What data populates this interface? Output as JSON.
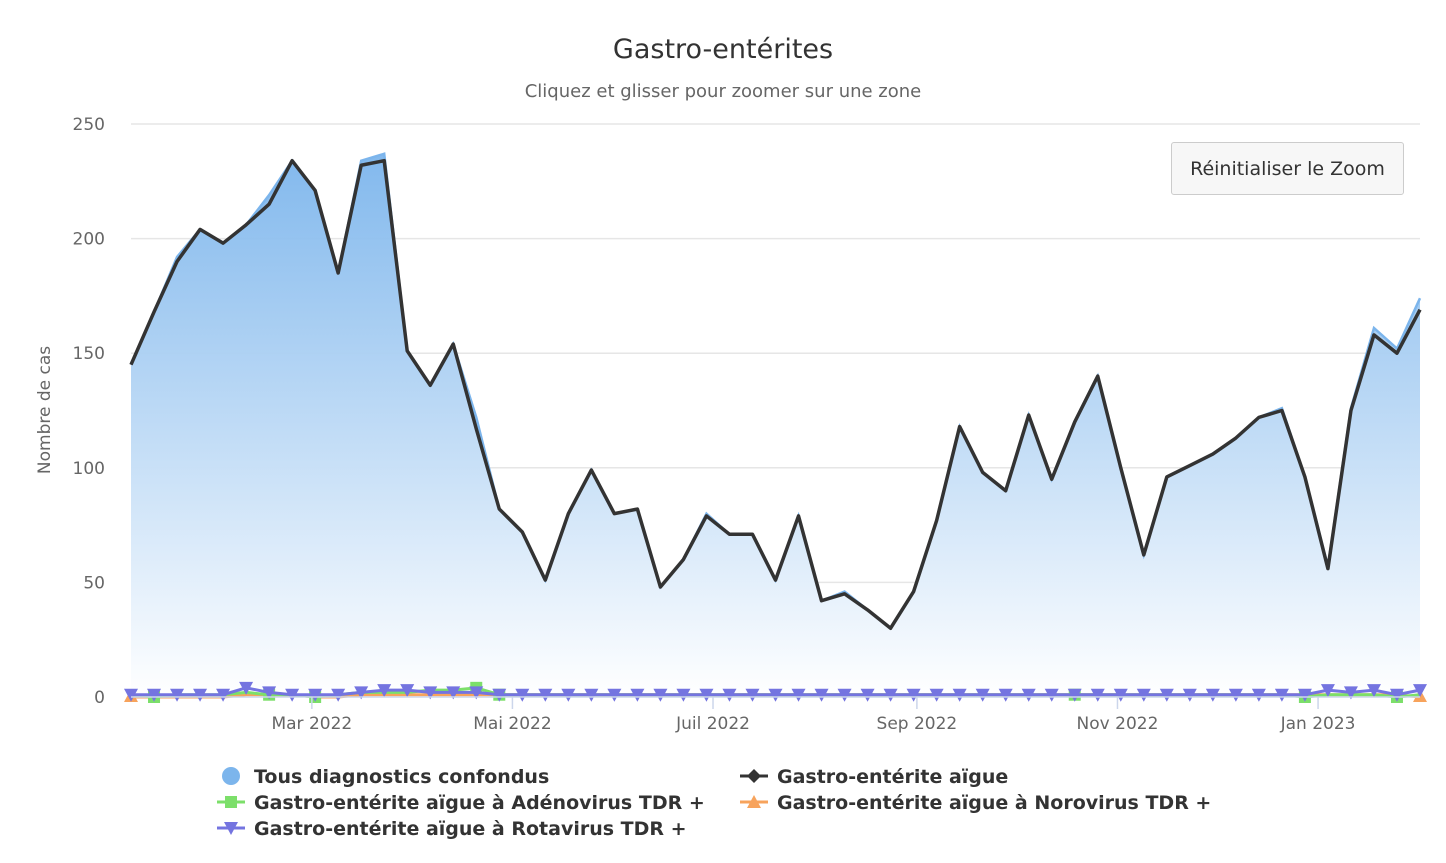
{
  "chart_data": {
    "type": "area",
    "title": "Gastro-entérites",
    "subtitle": "Cliquez et glisser pour zoomer sur une zone",
    "ylabel": "Nombre de cas",
    "xlabel": "",
    "ylim": [
      0,
      250
    ],
    "yticks": [
      0,
      50,
      100,
      150,
      200,
      250
    ],
    "xticks": [
      {
        "date": "2022-03-01",
        "label": "Mar 2022"
      },
      {
        "date": "2022-05-01",
        "label": "Mai 2022"
      },
      {
        "date": "2022-07-01",
        "label": "Juil 2022"
      },
      {
        "date": "2022-09-01",
        "label": "Sep 2022"
      },
      {
        "date": "2022-11-01",
        "label": "Nov 2022"
      },
      {
        "date": "2023-01-01",
        "label": "Jan 2023"
      }
    ],
    "grid": true,
    "legend_position": "bottom",
    "x": [
      "2022-01-05",
      "2022-01-12",
      "2022-01-19",
      "2022-01-26",
      "2022-02-02",
      "2022-02-09",
      "2022-02-16",
      "2022-02-23",
      "2022-03-02",
      "2022-03-09",
      "2022-03-16",
      "2022-03-23",
      "2022-03-30",
      "2022-04-06",
      "2022-04-13",
      "2022-04-20",
      "2022-04-27",
      "2022-05-04",
      "2022-05-11",
      "2022-05-18",
      "2022-05-25",
      "2022-06-01",
      "2022-06-08",
      "2022-06-15",
      "2022-06-22",
      "2022-06-29",
      "2022-07-06",
      "2022-07-13",
      "2022-07-20",
      "2022-07-27",
      "2022-08-03",
      "2022-08-10",
      "2022-08-17",
      "2022-08-24",
      "2022-08-31",
      "2022-09-07",
      "2022-09-14",
      "2022-09-21",
      "2022-09-28",
      "2022-10-05",
      "2022-10-12",
      "2022-10-19",
      "2022-10-26",
      "2022-11-02",
      "2022-11-09",
      "2022-11-16",
      "2022-11-23",
      "2022-11-30",
      "2022-12-07",
      "2022-12-14",
      "2022-12-21",
      "2022-12-28",
      "2023-01-04",
      "2023-01-11",
      "2023-01-18",
      "2023-01-25",
      "2023-02-01"
    ],
    "series": [
      {
        "name": "Tous diagnostics confondus",
        "type": "area",
        "color": "#7cb5ec",
        "marker": "circle",
        "values": [
          145,
          168,
          192,
          204,
          198,
          206,
          219,
          234,
          221,
          185,
          234,
          237,
          151,
          136,
          154,
          122,
          82,
          72,
          51,
          80,
          99,
          80,
          82,
          48,
          60,
          80,
          71,
          71,
          51,
          79,
          42,
          46,
          38,
          30,
          46,
          77,
          118,
          98,
          90,
          123,
          95,
          120,
          140,
          100,
          62,
          96,
          101,
          106,
          113,
          122,
          126,
          96,
          57,
          126,
          161,
          152,
          174
        ]
      },
      {
        "name": "Gastro-entérite aïgue",
        "type": "line",
        "color": "#333333",
        "marker": "diamond",
        "values": [
          145,
          168,
          190,
          204,
          198,
          206,
          215,
          234,
          221,
          185,
          232,
          234,
          151,
          136,
          154,
          117,
          82,
          72,
          51,
          80,
          99,
          80,
          82,
          48,
          60,
          79,
          71,
          71,
          51,
          79,
          42,
          45,
          38,
          30,
          46,
          77,
          118,
          98,
          90,
          123,
          95,
          120,
          140,
          100,
          62,
          96,
          101,
          106,
          113,
          122,
          125,
          96,
          56,
          125,
          158,
          150,
          169
        ]
      },
      {
        "name": "Gastro-entérite aïgue à Adénovirus TDR +",
        "type": "line",
        "color": "#7cdf6a",
        "marker": "square",
        "values": [
          1,
          0,
          1,
          1,
          1,
          2,
          1,
          1,
          0,
          1,
          2,
          2,
          2,
          3,
          3,
          4,
          1,
          1,
          1,
          1,
          1,
          1,
          1,
          1,
          1,
          1,
          1,
          1,
          1,
          1,
          1,
          1,
          1,
          1,
          1,
          1,
          1,
          1,
          1,
          1,
          1,
          1,
          1,
          1,
          1,
          1,
          1,
          1,
          1,
          1,
          1,
          0,
          1,
          1,
          1,
          0,
          1
        ]
      },
      {
        "name": "Gastro-entérite aïgue à Norovirus TDR +",
        "type": "line",
        "color": "#f7a35c",
        "marker": "triangle",
        "values": [
          0,
          0,
          0,
          0,
          0,
          1,
          1,
          1,
          0,
          0,
          1,
          1,
          1,
          1,
          1,
          1,
          1,
          1,
          1,
          1,
          1,
          1,
          1,
          1,
          1,
          1,
          1,
          1,
          1,
          1,
          1,
          1,
          1,
          1,
          1,
          1,
          1,
          1,
          1,
          1,
          1,
          1,
          1,
          1,
          1,
          1,
          1,
          1,
          1,
          1,
          1,
          1,
          1,
          1,
          1,
          1,
          0
        ]
      },
      {
        "name": "Gastro-entérite aïgue à Rotavirus TDR +",
        "type": "line",
        "color": "#7474e0",
        "marker": "triangle-down",
        "values": [
          1,
          1,
          1,
          1,
          1,
          4,
          2,
          1,
          1,
          1,
          2,
          3,
          3,
          2,
          2,
          2,
          1,
          1,
          1,
          1,
          1,
          1,
          1,
          1,
          1,
          1,
          1,
          1,
          1,
          1,
          1,
          1,
          1,
          1,
          1,
          1,
          1,
          1,
          1,
          1,
          1,
          1,
          1,
          1,
          1,
          1,
          1,
          1,
          1,
          1,
          1,
          1,
          3,
          2,
          3,
          1,
          3
        ]
      }
    ]
  },
  "reset_zoom_label": "Réinitialiser le Zoom"
}
